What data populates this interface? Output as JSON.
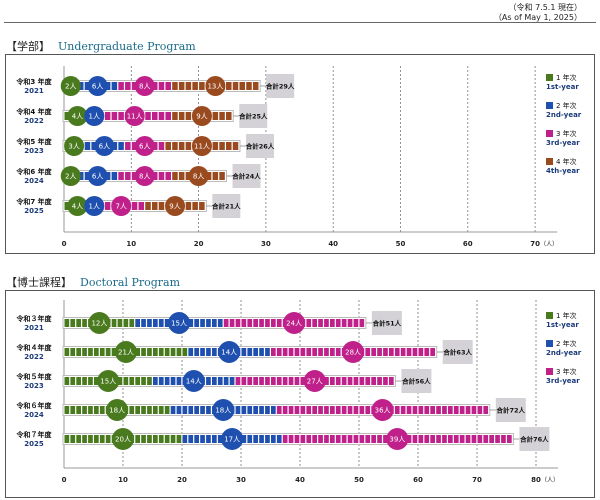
{
  "header": {
    "as_of_jp": "（令和 7.5.1 現在）",
    "as_of_en": "（As of May 1, 2025）"
  },
  "colors": {
    "1st": "#4a7a1e",
    "2nd": "#1f50b0",
    "3rd": "#c0208a",
    "4th": "#9a4a1f",
    "total_box": "#d4d2d6",
    "year_text": "#1a3a7a"
  },
  "chart_data": [
    {
      "type": "bar",
      "stacked": true,
      "orientation": "horizontal",
      "title_jp": "【学部】",
      "title_en": "Undergraduate Program",
      "categories": [
        {
          "jp": "令和3 年度",
          "year": "2021"
        },
        {
          "jp": "令和4 年度",
          "year": "2022"
        },
        {
          "jp": "令和5 年度",
          "year": "2023"
        },
        {
          "jp": "令和6 年度",
          "year": "2024"
        },
        {
          "jp": "令和7 年度",
          "year": "2025"
        }
      ],
      "series": [
        {
          "key": "1st",
          "name_jp": "1 年次",
          "name_en": "1st-year",
          "values": [
            2,
            4,
            3,
            2,
            4
          ]
        },
        {
          "key": "2nd",
          "name_jp": "2 年次",
          "name_en": "2nd-year",
          "values": [
            6,
            1,
            6,
            6,
            1
          ]
        },
        {
          "key": "3rd",
          "name_jp": "3 年次",
          "name_en": "3rd-year",
          "values": [
            8,
            11,
            6,
            8,
            7
          ]
        },
        {
          "key": "4th",
          "name_jp": "4 年次",
          "name_en": "4th-year",
          "values": [
            13,
            9,
            11,
            8,
            9
          ]
        }
      ],
      "totals": [
        "合計29人",
        "合計25人",
        "合計26人",
        "合計24人",
        "合計21人"
      ],
      "unit": "人",
      "value_labels": [
        [
          "2人",
          "6人",
          "8人",
          "13人"
        ],
        [
          "4人",
          "1人",
          "11人",
          "9人"
        ],
        [
          "3人",
          "6人",
          "6人",
          "11人"
        ],
        [
          "2人",
          "6人",
          "8人",
          "8人"
        ],
        [
          "4人",
          "1人",
          "7人",
          "9人"
        ]
      ],
      "xlim": [
        0,
        70
      ],
      "xticks": [
        "0",
        "10",
        "20",
        "30",
        "40",
        "50",
        "60",
        "70"
      ],
      "xunit": "（人）",
      "grid": true,
      "legend": "right"
    },
    {
      "type": "bar",
      "stacked": true,
      "orientation": "horizontal",
      "title_jp": "【博士課程】",
      "title_en": "Doctoral Program",
      "categories": [
        {
          "jp": "令和３年度",
          "year": "2021"
        },
        {
          "jp": "令和４年度",
          "year": "2022"
        },
        {
          "jp": "令和５年度",
          "year": "2023"
        },
        {
          "jp": "令和６年度",
          "year": "2024"
        },
        {
          "jp": "令和７年度",
          "year": "2025"
        }
      ],
      "series": [
        {
          "key": "1st",
          "name_jp": "1 年次",
          "name_en": "1st-year",
          "values": [
            12,
            21,
            15,
            18,
            20
          ]
        },
        {
          "key": "2nd",
          "name_jp": "2 年次",
          "name_en": "2nd-year",
          "values": [
            15,
            14,
            14,
            18,
            17
          ]
        },
        {
          "key": "3rd",
          "name_jp": "3 年次",
          "name_en": "3rd-year",
          "values": [
            24,
            28,
            27,
            36,
            39
          ]
        }
      ],
      "totals": [
        "合計51人",
        "合計63人",
        "合計56人",
        "合計72人",
        "合計76人"
      ],
      "unit": "人",
      "value_labels": [
        [
          "12人",
          "15人",
          "24人"
        ],
        [
          "21人",
          "14人",
          "28人"
        ],
        [
          "15人",
          "14人",
          "27人"
        ],
        [
          "18人",
          "18人",
          "36人"
        ],
        [
          "20人",
          "17人",
          "39人"
        ]
      ],
      "xlim": [
        0,
        80
      ],
      "xticks": [
        "0",
        "10",
        "20",
        "30",
        "40",
        "50",
        "60",
        "70",
        "80"
      ],
      "xunit": "（人）",
      "grid": true,
      "legend": "right"
    }
  ]
}
